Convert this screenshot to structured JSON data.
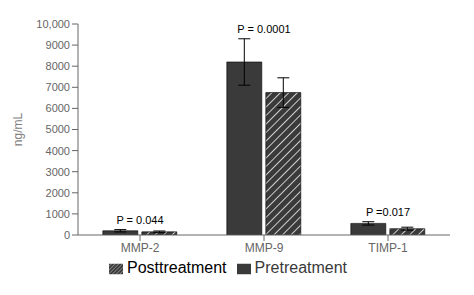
{
  "chart_data": {
    "type": "bar",
    "categories": [
      "MMP-2",
      "MMP-9",
      "TIMP-1"
    ],
    "series": [
      {
        "name": "Pretreatment",
        "color": "#3a3a3a",
        "values": [
          200,
          8200,
          550
        ],
        "errors": [
          55,
          1100,
          80
        ]
      },
      {
        "name": "Posttreatment",
        "color": "#3a3a3a",
        "values": [
          150,
          6750,
          300
        ],
        "errors": [
          40,
          700,
          70
        ]
      }
    ],
    "ylabel": "ng/mL",
    "ylim": [
      0,
      10000
    ],
    "yticks": [
      0,
      1000,
      2000,
      3000,
      4000,
      5000,
      6000,
      7000,
      8000,
      9000,
      {
        "value": 10000,
        "label": "10,000"
      }
    ],
    "annotations": [
      {
        "text": "P = 0.044",
        "category": "MMP-2"
      },
      {
        "text": "P = 0.0001",
        "category": "MMP-9"
      },
      {
        "text": "P =0.017",
        "category": "TIMP-1"
      }
    ],
    "grid": false,
    "legend": "bottom"
  }
}
